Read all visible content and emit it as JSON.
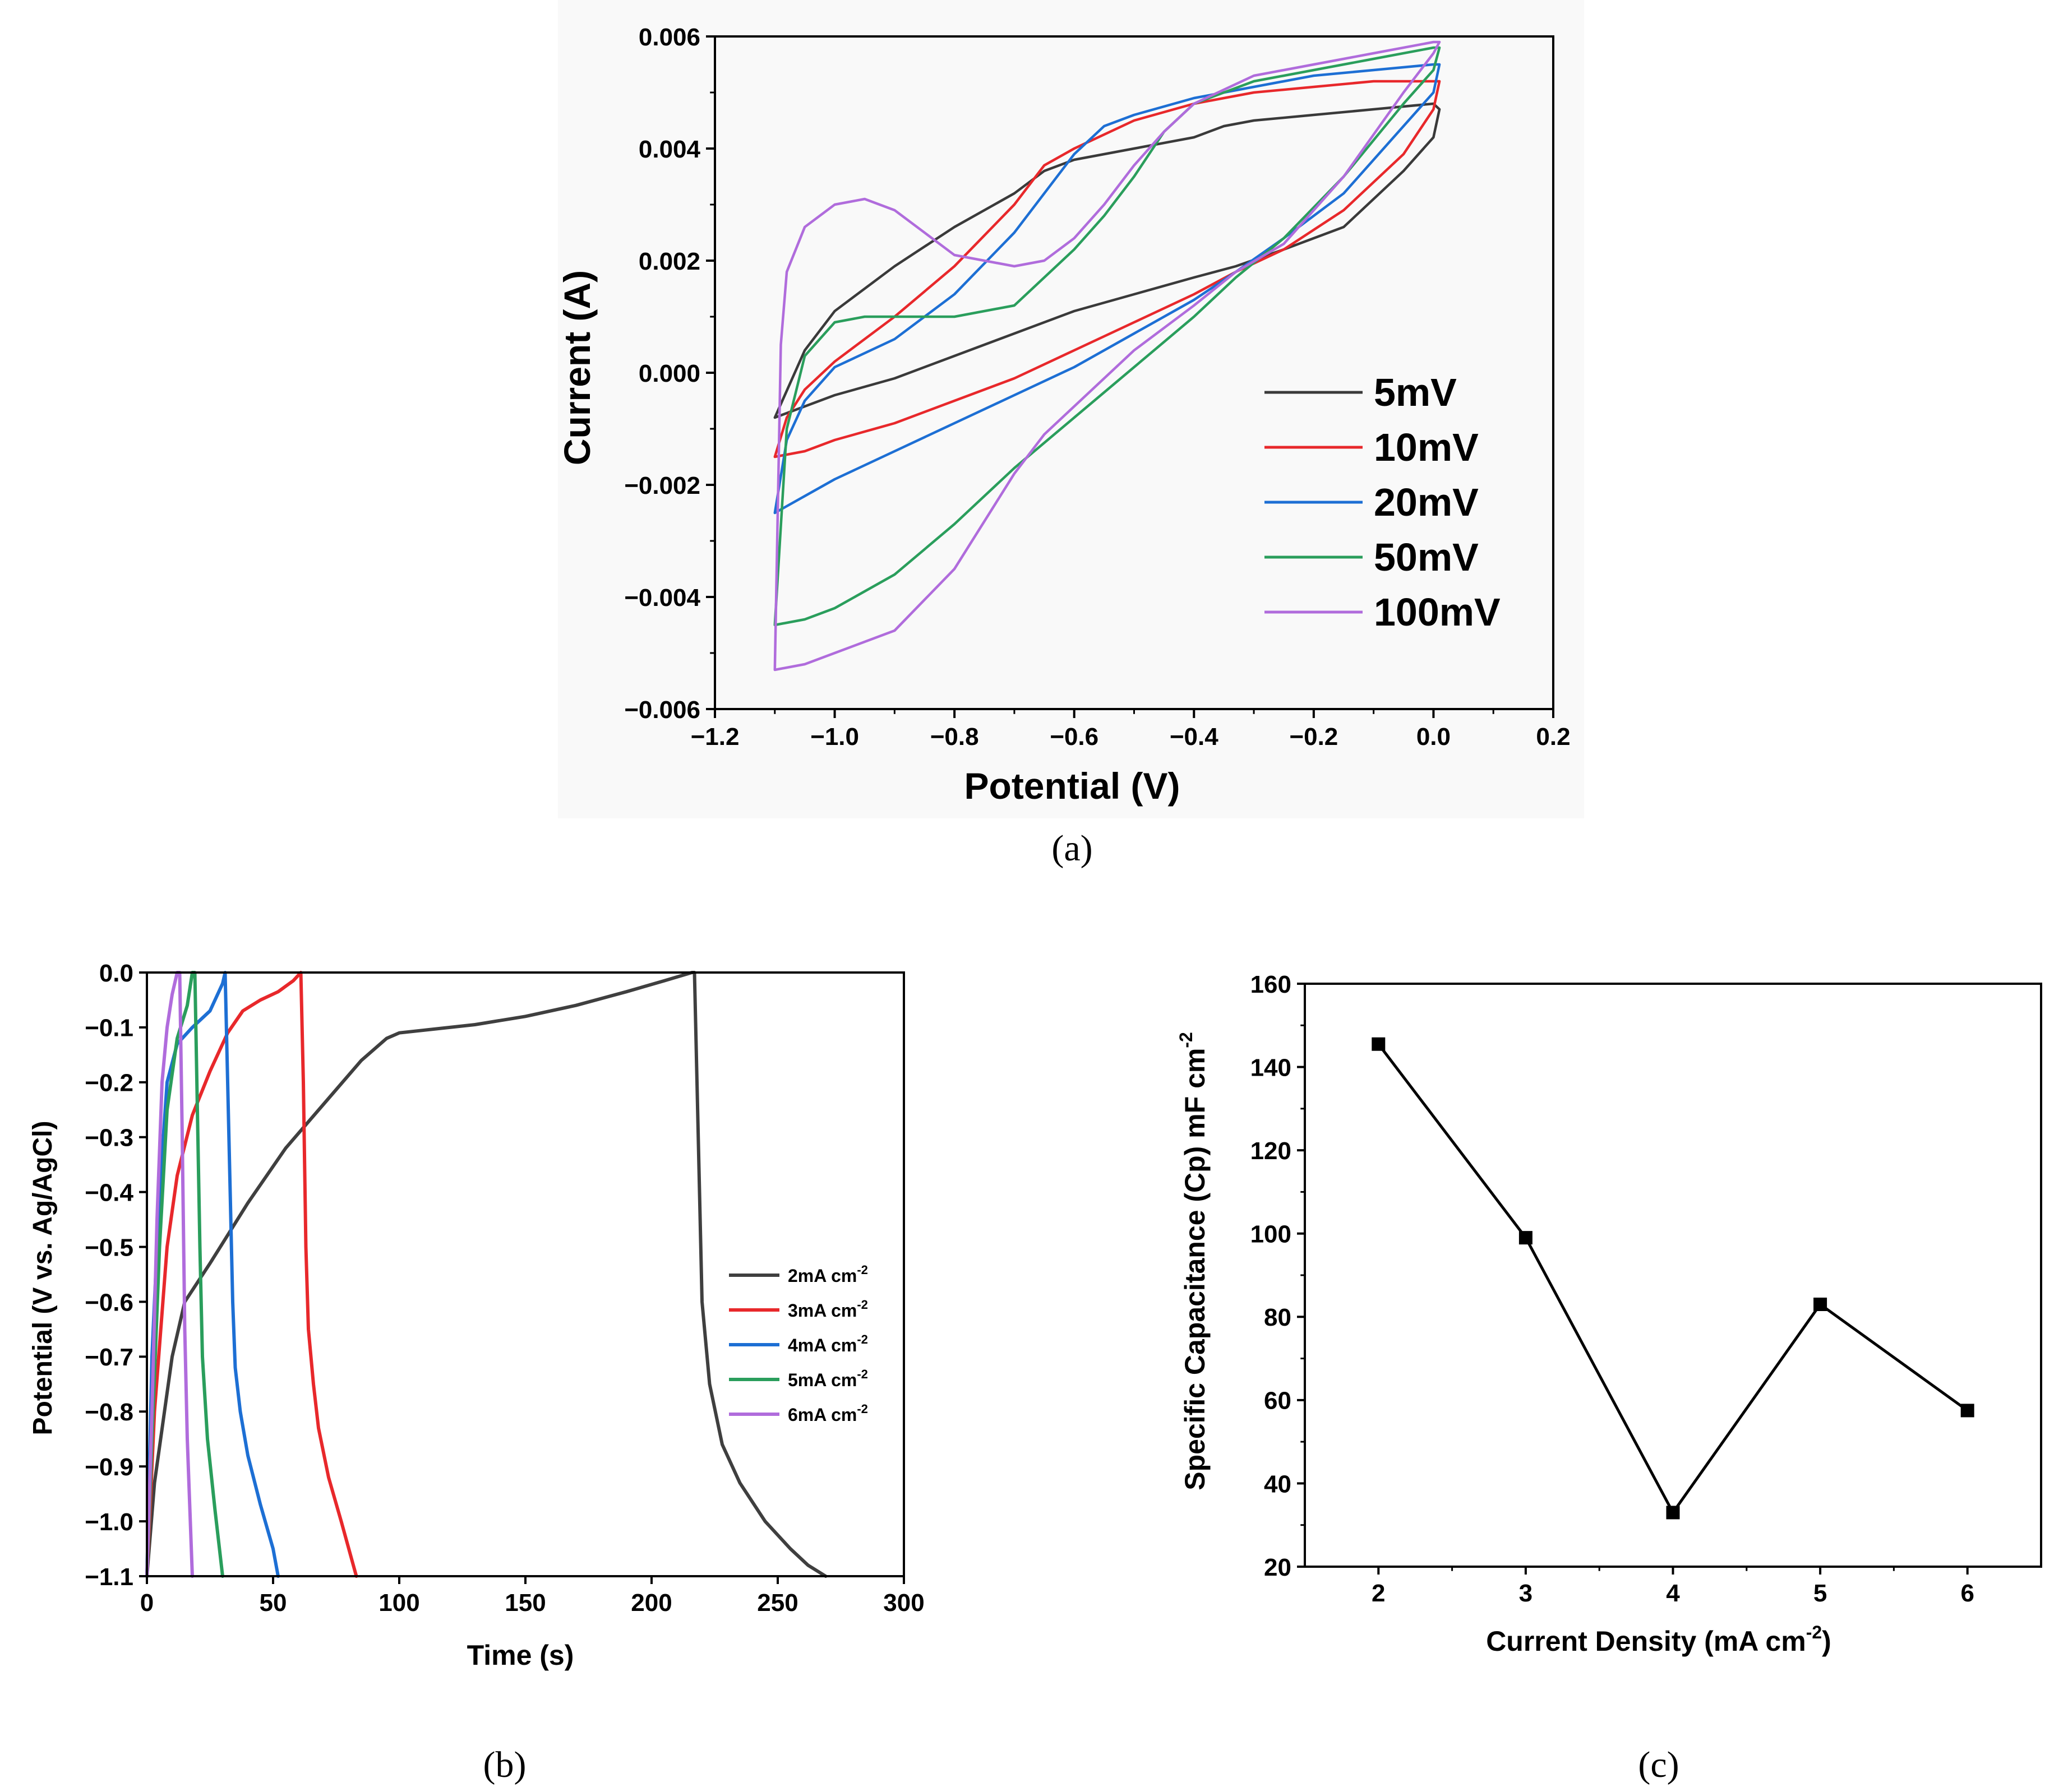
{
  "chart_data": [
    {
      "type": "line",
      "panel": "(a)",
      "xlabel": "Potential (V)",
      "ylabel": "Current (A)",
      "xlim": [
        -1.2,
        0.2
      ],
      "ylim": [
        -0.006,
        0.006
      ],
      "xticks": [
        "-1.2",
        "-1.0",
        "-0.8",
        "-0.6",
        "-0.4",
        "-0.2",
        "0.0",
        "0.2"
      ],
      "yticks": [
        "-0.006",
        "-0.004",
        "-0.002",
        "0.000",
        "0.002",
        "0.004",
        "0.006"
      ],
      "legend_position": "lower-right",
      "series": [
        {
          "name": "5mV",
          "color": "#3a3a3a",
          "x": [
            -1.1,
            -1.05,
            -1.0,
            -0.9,
            -0.8,
            -0.7,
            -0.65,
            -0.6,
            -0.5,
            -0.4,
            -0.35,
            -0.3,
            -0.2,
            -0.1,
            0.0,
            0.01,
            0.0,
            -0.05,
            -0.15,
            -0.25,
            -0.33,
            -0.4,
            -0.5,
            -0.6,
            -0.7,
            -0.8,
            -0.9,
            -1.0,
            -1.05,
            -1.1
          ],
          "y": [
            -0.0008,
            0.0004,
            0.0011,
            0.0019,
            0.0026,
            0.0032,
            0.0036,
            0.0038,
            0.004,
            0.0042,
            0.0044,
            0.0045,
            0.0046,
            0.0047,
            0.0048,
            0.0047,
            0.0042,
            0.0036,
            0.0026,
            0.0022,
            0.0019,
            0.0017,
            0.0014,
            0.0011,
            0.0007,
            0.0003,
            -0.0001,
            -0.0004,
            -0.0006,
            -0.0008
          ]
        },
        {
          "name": "10mV",
          "color": "#e8282b",
          "x": [
            -1.1,
            -1.08,
            -1.05,
            -1.0,
            -0.9,
            -0.8,
            -0.7,
            -0.65,
            -0.6,
            -0.5,
            -0.4,
            -0.3,
            -0.2,
            -0.1,
            0.0,
            0.01,
            0.0,
            -0.05,
            -0.15,
            -0.25,
            -0.33,
            -0.4,
            -0.5,
            -0.6,
            -0.7,
            -0.8,
            -0.9,
            -1.0,
            -1.05,
            -1.1
          ],
          "y": [
            -0.0015,
            -0.0008,
            -0.0003,
            0.0002,
            0.001,
            0.0019,
            0.003,
            0.0037,
            0.004,
            0.0045,
            0.0048,
            0.005,
            0.0051,
            0.0052,
            0.0052,
            0.0052,
            0.0047,
            0.0039,
            0.0029,
            0.0022,
            0.0018,
            0.0014,
            0.0009,
            0.0004,
            -0.0001,
            -0.0005,
            -0.0009,
            -0.0012,
            -0.0014,
            -0.0015
          ]
        },
        {
          "name": "20mV",
          "color": "#1d6fd4",
          "x": [
            -1.1,
            -1.08,
            -1.05,
            -1.0,
            -0.9,
            -0.8,
            -0.7,
            -0.6,
            -0.55,
            -0.5,
            -0.4,
            -0.3,
            -0.2,
            -0.1,
            0.0,
            0.01,
            0.0,
            -0.05,
            -0.15,
            -0.25,
            -0.33,
            -0.4,
            -0.5,
            -0.6,
            -0.7,
            -0.8,
            -0.9,
            -1.0,
            -1.05,
            -1.1
          ],
          "y": [
            -0.0025,
            -0.0012,
            -0.0005,
            0.0001,
            0.0006,
            0.0014,
            0.0025,
            0.0039,
            0.0044,
            0.0046,
            0.0049,
            0.0051,
            0.0053,
            0.0054,
            0.0055,
            0.0055,
            0.005,
            0.0044,
            0.0032,
            0.0024,
            0.0018,
            0.0013,
            0.0007,
            0.0001,
            -0.0004,
            -0.0009,
            -0.0014,
            -0.0019,
            -0.0022,
            -0.0025
          ]
        },
        {
          "name": "50mV",
          "color": "#2a9e5c",
          "x": [
            -1.1,
            -1.08,
            -1.05,
            -1.0,
            -0.95,
            -0.9,
            -0.8,
            -0.7,
            -0.6,
            -0.55,
            -0.5,
            -0.45,
            -0.4,
            -0.3,
            -0.2,
            -0.1,
            0.0,
            0.01,
            0.0,
            -0.05,
            -0.15,
            -0.25,
            -0.33,
            -0.4,
            -0.5,
            -0.6,
            -0.7,
            -0.8,
            -0.9,
            -1.0,
            -1.05,
            -1.1
          ],
          "y": [
            -0.0045,
            -0.001,
            0.0003,
            0.0009,
            0.001,
            0.001,
            0.001,
            0.0012,
            0.0022,
            0.0028,
            0.0035,
            0.0043,
            0.0048,
            0.0052,
            0.0054,
            0.0056,
            0.0058,
            0.0058,
            0.0054,
            0.0048,
            0.0035,
            0.0024,
            0.0017,
            0.001,
            0.0001,
            -0.0008,
            -0.0017,
            -0.0027,
            -0.0036,
            -0.0042,
            -0.0044,
            -0.0045
          ]
        },
        {
          "name": "100mV",
          "color": "#b06cdc",
          "x": [
            -1.1,
            -1.09,
            -1.08,
            -1.05,
            -1.0,
            -0.95,
            -0.9,
            -0.85,
            -0.8,
            -0.7,
            -0.65,
            -0.6,
            -0.55,
            -0.5,
            -0.45,
            -0.4,
            -0.3,
            -0.2,
            -0.1,
            0.0,
            0.01,
            0.0,
            -0.05,
            -0.15,
            -0.25,
            -0.33,
            -0.4,
            -0.5,
            -0.6,
            -0.65,
            -0.7,
            -0.8,
            -0.9,
            -1.0,
            -1.05,
            -1.1
          ],
          "y": [
            -0.0053,
            0.0005,
            0.0018,
            0.0026,
            0.003,
            0.0031,
            0.0029,
            0.0025,
            0.0021,
            0.0019,
            0.002,
            0.0024,
            0.003,
            0.0037,
            0.0043,
            0.0048,
            0.0053,
            0.0055,
            0.0057,
            0.0059,
            0.0059,
            0.0057,
            0.005,
            0.0035,
            0.0023,
            0.0018,
            0.0012,
            0.0004,
            -0.0006,
            -0.0011,
            -0.0018,
            -0.0035,
            -0.0046,
            -0.005,
            -0.0052,
            -0.0053
          ]
        }
      ]
    },
    {
      "type": "line",
      "panel": "(b)",
      "xlabel": "Time (s)",
      "ylabel": "Potential (V vs. Ag/AgCl)",
      "xlim": [
        0,
        300
      ],
      "ylim": [
        -1.1,
        0.0
      ],
      "xticks": [
        "0",
        "50",
        "100",
        "150",
        "200",
        "250",
        "300"
      ],
      "yticks": [
        "0.0",
        "-0.1",
        "-0.2",
        "-0.3",
        "-0.4",
        "-0.5",
        "-0.6",
        "-0.7",
        "-0.8",
        "-0.9",
        "-1.0",
        "-1.1"
      ],
      "legend_position": "center-right",
      "series": [
        {
          "name": "2mA cm",
          "sup": "-2",
          "color": "#3f3f3f",
          "x": [
            0,
            3,
            10,
            15,
            25,
            40,
            55,
            70,
            85,
            95,
            100,
            110,
            130,
            150,
            170,
            190,
            205,
            216,
            217,
            218,
            219,
            220,
            223,
            228,
            235,
            245,
            255,
            262,
            269
          ],
          "y": [
            -1.1,
            -0.93,
            -0.7,
            -0.6,
            -0.53,
            -0.42,
            -0.32,
            -0.24,
            -0.16,
            -0.12,
            -0.11,
            -0.105,
            -0.095,
            -0.08,
            -0.06,
            -0.035,
            -0.015,
            0.0,
            0.0,
            -0.2,
            -0.4,
            -0.6,
            -0.75,
            -0.86,
            -0.93,
            -1.0,
            -1.05,
            -1.08,
            -1.1
          ]
        },
        {
          "name": "3mA cm",
          "sup": "-2",
          "color": "#e8282b",
          "x": [
            0,
            3,
            8,
            12,
            18,
            25,
            32,
            38,
            45,
            52,
            58,
            61,
            62,
            63,
            64,
            66,
            68,
            72,
            77,
            83
          ],
          "y": [
            -1.1,
            -0.8,
            -0.5,
            -0.37,
            -0.26,
            -0.18,
            -0.11,
            -0.07,
            -0.05,
            -0.035,
            -0.015,
            0.0,
            -0.2,
            -0.5,
            -0.65,
            -0.75,
            -0.83,
            -0.92,
            -1.0,
            -1.1
          ]
        },
        {
          "name": "4mA cm",
          "sup": "-2",
          "color": "#1d6fd4",
          "x": [
            0,
            2,
            5,
            8,
            12,
            18,
            25,
            30,
            31,
            32,
            33,
            34,
            35,
            37,
            40,
            45,
            50,
            52
          ],
          "y": [
            -1.1,
            -0.7,
            -0.4,
            -0.2,
            -0.13,
            -0.1,
            -0.07,
            -0.02,
            0.0,
            -0.2,
            -0.4,
            -0.6,
            -0.72,
            -0.8,
            -0.88,
            -0.97,
            -1.05,
            -1.1
          ]
        },
        {
          "name": "5mA cm",
          "sup": "-2",
          "color": "#2a9e5c",
          "x": [
            0,
            2,
            5,
            8,
            12,
            16,
            18,
            19,
            20,
            21,
            22,
            24,
            27,
            30
          ],
          "y": [
            -1.1,
            -0.85,
            -0.5,
            -0.25,
            -0.12,
            -0.06,
            0.0,
            0.0,
            -0.25,
            -0.5,
            -0.7,
            -0.85,
            -0.98,
            -1.1
          ]
        },
        {
          "name": "6mA cm",
          "sup": "-2",
          "color": "#b06cdc",
          "x": [
            0,
            2,
            4,
            6,
            8,
            10,
            12,
            13,
            14,
            15,
            16,
            18
          ],
          "y": [
            -1.1,
            -0.8,
            -0.45,
            -0.2,
            -0.1,
            -0.04,
            0.0,
            0.0,
            -0.3,
            -0.65,
            -0.85,
            -1.1
          ]
        }
      ]
    },
    {
      "type": "line",
      "panel": "(c)",
      "markers": "square",
      "xlabel": "Current Density (mA cm",
      "xlabel_sup": "-2",
      "xlabel_end": ")",
      "ylabel": "Specific Capacitance (Cp) mF cm",
      "ylabel_sup": "-2",
      "xlim": [
        1.5,
        6.5
      ],
      "ylim": [
        20,
        160
      ],
      "xticks": [
        "2",
        "3",
        "4",
        "5",
        "6"
      ],
      "yticks": [
        "20",
        "40",
        "60",
        "80",
        "100",
        "120",
        "140",
        "160"
      ],
      "series": [
        {
          "name": "Specific Capacitance",
          "color": "#000000",
          "x": [
            2,
            3,
            4,
            5,
            6
          ],
          "y": [
            145.5,
            99,
            33,
            83,
            57.5
          ]
        }
      ]
    }
  ],
  "captions": {
    "a": "(a)",
    "b": "(b)",
    "c": "(c)"
  }
}
